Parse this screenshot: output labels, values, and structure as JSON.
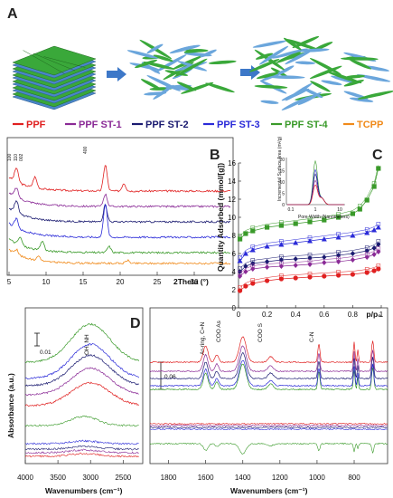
{
  "panels": {
    "a": "A",
    "b": "B",
    "c": "C",
    "d": "D"
  },
  "legend": [
    {
      "name": "PPF",
      "color": "#e02020"
    },
    {
      "name": "PPF ST-1",
      "color": "#8a2a96"
    },
    {
      "name": "PPF ST-2",
      "color": "#1a1a70"
    },
    {
      "name": "PPF ST-3",
      "color": "#2a2ad8"
    },
    {
      "name": "PPF ST-4",
      "color": "#3a9a2a"
    },
    {
      "name": "TCPP",
      "color": "#f08a1a"
    }
  ],
  "chart_data": [
    {
      "panel": "B",
      "type": "line",
      "xlabel": "2Theta (°)",
      "ylabel": "",
      "xlim": [
        5,
        35
      ],
      "x_ticks": [
        "5",
        "10",
        "15",
        "20",
        "25",
        "30"
      ],
      "peak_labels": [
        "100",
        "110",
        "002",
        "400"
      ],
      "series": [
        {
          "name": "PPF",
          "offset": 5.0,
          "peaks": [
            [
              6,
              0.9
            ],
            [
              8.5,
              0.7
            ],
            [
              18,
              1.7
            ],
            [
              20.5,
              0.5
            ]
          ]
        },
        {
          "name": "PPF ST-1",
          "offset": 4.0,
          "peaks": [
            [
              6,
              0.6
            ],
            [
              18,
              0.8
            ]
          ]
        },
        {
          "name": "PPF ST-2",
          "offset": 3.0,
          "peaks": [
            [
              6,
              0.8
            ],
            [
              18,
              1.1
            ]
          ]
        },
        {
          "name": "PPF ST-3",
          "offset": 2.0,
          "peaks": [
            [
              6,
              0.6
            ],
            [
              18,
              2.2
            ]
          ]
        },
        {
          "name": "PPF ST-4",
          "offset": 1.0,
          "peaks": [
            [
              6.5,
              0.5
            ],
            [
              9.5,
              0.6
            ],
            [
              18.5,
              0.4
            ]
          ]
        },
        {
          "name": "TCPP",
          "offset": 0.3,
          "peaks": [
            [
              6,
              0.3
            ],
            [
              9,
              0.3
            ],
            [
              21,
              0.2
            ]
          ]
        }
      ]
    },
    {
      "panel": "C",
      "type": "scatter",
      "xlabel": "p/p₀",
      "ylabel": "Quantity Adsorbed (mmol/[g])",
      "xlim": [
        0,
        1
      ],
      "ylim": [
        0,
        16
      ],
      "x_ticks": [
        "0",
        "0.2",
        "0.4",
        "0.6",
        "0.8",
        "1"
      ],
      "y_ticks": [
        "0",
        "2",
        "4",
        "6",
        "8",
        "10",
        "12",
        "14",
        "16"
      ],
      "series": [
        {
          "name": "PPF ST-4",
          "marker": "square",
          "x": [
            0.01,
            0.05,
            0.1,
            0.2,
            0.3,
            0.4,
            0.5,
            0.6,
            0.7,
            0.8,
            0.85,
            0.9,
            0.95,
            0.98
          ],
          "y": [
            7.6,
            8.2,
            8.5,
            8.9,
            9.1,
            9.3,
            9.5,
            9.7,
            10.0,
            10.4,
            10.9,
            11.9,
            13.4,
            15.4
          ]
        },
        {
          "name": "PPF ST-3",
          "marker": "triangle",
          "x": [
            0.01,
            0.05,
            0.1,
            0.2,
            0.3,
            0.4,
            0.5,
            0.6,
            0.7,
            0.8,
            0.9,
            0.95,
            0.98
          ],
          "y": [
            5.2,
            6.0,
            6.4,
            6.8,
            7.0,
            7.2,
            7.4,
            7.6,
            7.8,
            8.0,
            8.3,
            8.6,
            8.9
          ]
        },
        {
          "name": "PPF ST-2",
          "marker": "diamond",
          "x": [
            0.01,
            0.05,
            0.1,
            0.2,
            0.3,
            0.4,
            0.5,
            0.6,
            0.7,
            0.8,
            0.9,
            0.95,
            0.98
          ],
          "y": [
            4.0,
            4.6,
            4.9,
            5.1,
            5.3,
            5.4,
            5.5,
            5.6,
            5.8,
            6.0,
            6.3,
            6.6,
            7.0
          ]
        },
        {
          "name": "PPF ST-1",
          "marker": "diamond",
          "x": [
            0.01,
            0.05,
            0.1,
            0.2,
            0.3,
            0.4,
            0.5,
            0.6,
            0.7,
            0.8,
            0.9,
            0.95,
            0.98
          ],
          "y": [
            3.5,
            4.0,
            4.3,
            4.5,
            4.6,
            4.7,
            4.8,
            5.0,
            5.1,
            5.3,
            5.6,
            5.9,
            6.2
          ]
        },
        {
          "name": "PPF",
          "marker": "circle",
          "x": [
            0.01,
            0.05,
            0.1,
            0.2,
            0.3,
            0.4,
            0.5,
            0.6,
            0.7,
            0.8,
            0.9,
            0.95,
            0.98
          ],
          "y": [
            1.9,
            2.4,
            2.7,
            3.0,
            3.2,
            3.3,
            3.4,
            3.5,
            3.6,
            3.7,
            3.9,
            4.1,
            4.3
          ]
        }
      ],
      "inset": {
        "ylabel": "Incremental Surface Area (m²/g)",
        "xlabel": "Pore Width (Nanometers)",
        "y_ticks": [
          "0",
          "5",
          "10",
          "15",
          "20"
        ],
        "x_ticks": [
          "0.1",
          "1",
          "10"
        ]
      }
    },
    {
      "panel": "D",
      "type": "line",
      "xlabel": "Wavenumbers (cm⁻¹)",
      "ylabel": "Absorbance (a.u.)",
      "left_x_ticks": [
        "4000",
        "3500",
        "3000",
        "2500"
      ],
      "right_x_ticks": [
        "1800",
        "1600",
        "1400",
        "1200",
        "1000",
        "800"
      ],
      "left_scale_bar": "0.01",
      "right_scale_bar": "0.06",
      "annotations": [
        "OH, NH",
        "Ar-ring, C=N",
        "COO As",
        "COO S",
        "C-N"
      ]
    }
  ]
}
